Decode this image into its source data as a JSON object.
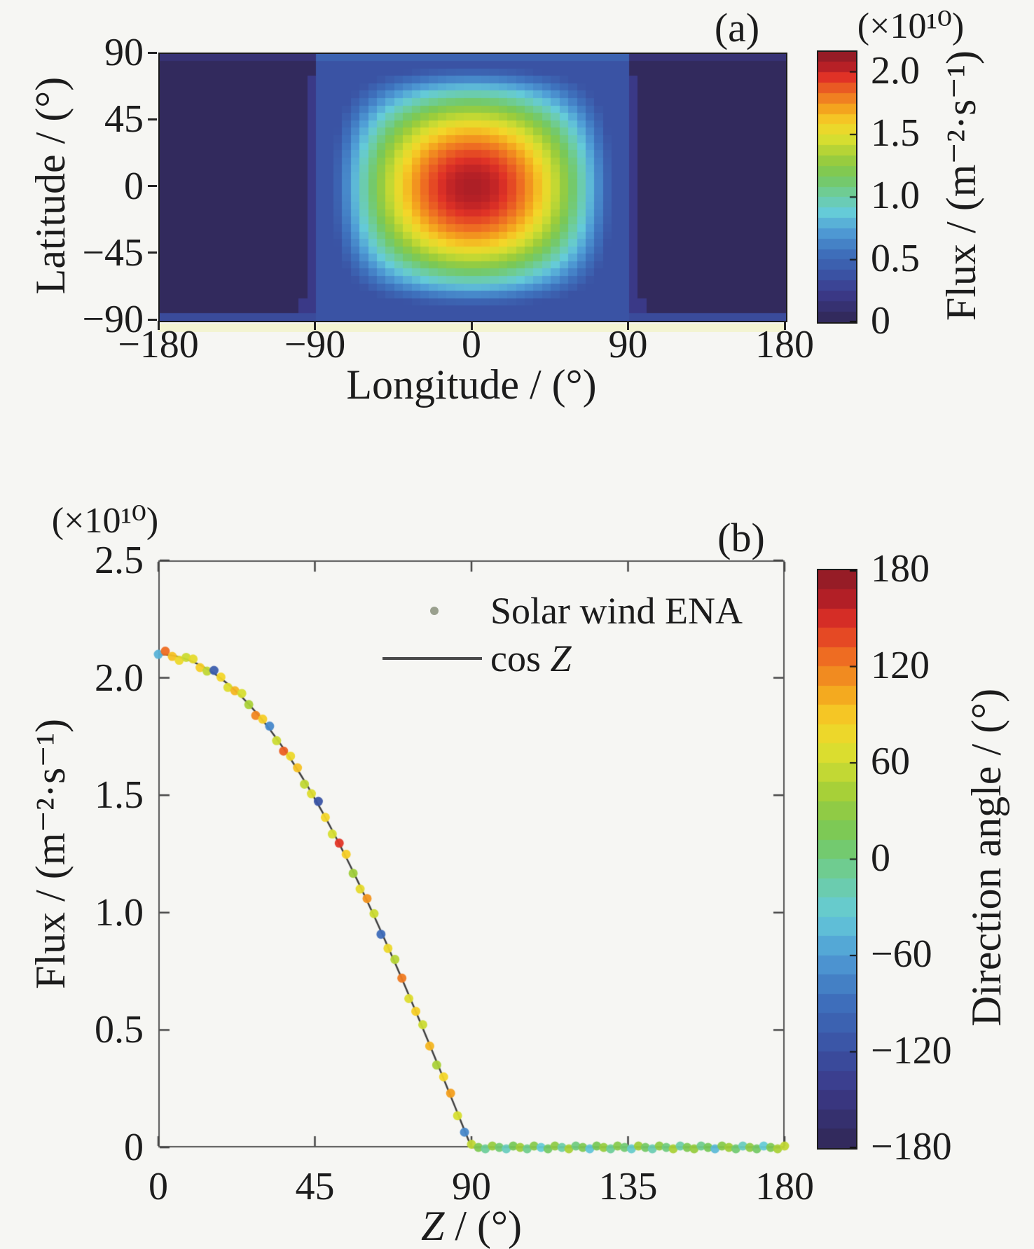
{
  "figure": {
    "background": "#f6f6f3",
    "text_color": "#1c1c1c",
    "axis_color": "#4a4a4a"
  },
  "jet_colormap_stops": [
    [
      0.0,
      "#322a5d"
    ],
    [
      0.09,
      "#3b3a8a"
    ],
    [
      0.16,
      "#3a52a3"
    ],
    [
      0.25,
      "#3e71bd"
    ],
    [
      0.33,
      "#509ed6"
    ],
    [
      0.4,
      "#65cbd8"
    ],
    [
      0.47,
      "#6ecd9c"
    ],
    [
      0.54,
      "#76c85a"
    ],
    [
      0.61,
      "#9ecd3a"
    ],
    [
      0.68,
      "#d6de30"
    ],
    [
      0.74,
      "#f5d528"
    ],
    [
      0.8,
      "#f4a41e"
    ],
    [
      0.86,
      "#ee6e22"
    ],
    [
      0.92,
      "#e03226"
    ],
    [
      0.96,
      "#b72026"
    ],
    [
      1.0,
      "#961c26"
    ]
  ],
  "panels": {
    "a": {
      "tag": "(a)",
      "xlabel": "Longitude / (°)",
      "ylabel": "Latitude / (°)",
      "scale_note": "(×10¹⁰)",
      "colorbar_label": "Flux / (m⁻²·s⁻¹)"
    },
    "b": {
      "tag": "(b)",
      "xlabel_var": "Z",
      "xlabel_rest": " / (°)",
      "ylabel": "Flux / (m⁻²·s⁻¹)",
      "scale_note": "(×10¹⁰)",
      "colorbar_label": "Direction angle / (°)",
      "legend": {
        "scatter_label": "Solar wind ENA",
        "line_label_pre": "cos ",
        "line_label_var": "Z"
      }
    }
  },
  "chart_data": [
    {
      "type": "heatmap",
      "panel": "a",
      "title": "(a)",
      "xlabel": "Longitude / (°)",
      "ylabel": "Latitude / (°)",
      "xlim": [
        -180,
        180
      ],
      "ylim": [
        -90,
        90
      ],
      "x_tick_values": [
        -180,
        -90,
        0,
        90,
        180
      ],
      "x_tick_labels": [
        "−180",
        "−90",
        "0",
        "90",
        "180"
      ],
      "y_tick_values": [
        90,
        45,
        0,
        -45,
        -90
      ],
      "y_tick_labels": [
        "90",
        "45",
        "0",
        "−45",
        "−90"
      ],
      "cell_deg": 5,
      "flux_model": "flux(lon,lat) = 2.1×10¹⁰ · max(0, cos lat · cos lon); peak 2.1×10¹⁰ m⁻²·s⁻¹ at (0°,0°); zero (dark) beyond ±90° longitude swath; low-flux blue floor inside the |lon| ≤ 90° swath",
      "model_params": {
        "amplitude_e10": 2.1,
        "column_floor_e10": 0.35,
        "stripe_floor_e10": 0.18,
        "bottom_row_floor_e10": 0.3,
        "top_row_floor_e10": 0.45,
        "column_half_width_deg": 90
      },
      "colorbar": {
        "range_e10": [
          0,
          2.16
        ],
        "tick_values": [
          2.0,
          1.5,
          1.0,
          0.5,
          0
        ],
        "tick_labels": [
          "2.0",
          "1.5",
          "1.0",
          "0.5",
          "0"
        ],
        "scale_note": "(×10¹⁰)",
        "label": "Flux / (m⁻²·s⁻¹)"
      },
      "grid": false
    },
    {
      "type": "scatter+line",
      "panel": "b",
      "title": "(b)",
      "xlabel": "Z / (°)",
      "ylabel": "Flux / (m⁻²·s⁻¹)",
      "xlim": [
        0,
        180
      ],
      "ylim": [
        0,
        2.5
      ],
      "x_tick_values": [
        0,
        45,
        90,
        135,
        180
      ],
      "x_tick_labels": [
        "0",
        "45",
        "90",
        "135",
        "180"
      ],
      "y_tick_values": [
        0,
        0.5,
        1.0,
        1.5,
        2.0,
        2.5
      ],
      "y_tick_labels": [
        "0",
        "0.5",
        "1.0",
        "1.5",
        "2.0",
        "2.5"
      ],
      "legend_position": "top-right-inside",
      "line": {
        "name": "cos Z",
        "amplitude_e10": 2.1,
        "model": "flux = 2.1×10¹⁰ · cos Z for Z ≤ 90°, 0 for Z > 90°",
        "color": "#3f3f3f"
      },
      "scatter": {
        "name": "Solar wind ENA",
        "color_by": "direction_angle_deg",
        "flux_model": "flux = 2.1×10¹⁰ · max(0, cos Z)",
        "points_z_dir": [
          [
            0,
            -50
          ],
          [
            2,
            130
          ],
          [
            4,
            95
          ],
          [
            6,
            80
          ],
          [
            8,
            60
          ],
          [
            10,
            75
          ],
          [
            12,
            90
          ],
          [
            14,
            55
          ],
          [
            16,
            -110
          ],
          [
            18,
            85
          ],
          [
            20,
            70
          ],
          [
            22,
            100
          ],
          [
            24,
            65
          ],
          [
            26,
            45
          ],
          [
            28,
            120
          ],
          [
            30,
            90
          ],
          [
            32,
            -75
          ],
          [
            34,
            60
          ],
          [
            36,
            135
          ],
          [
            38,
            80
          ],
          [
            40,
            95
          ],
          [
            42,
            55
          ],
          [
            44,
            70
          ],
          [
            46,
            -120
          ],
          [
            48,
            85
          ],
          [
            50,
            65
          ],
          [
            52,
            150
          ],
          [
            54,
            90
          ],
          [
            56,
            40
          ],
          [
            58,
            75
          ],
          [
            60,
            115
          ],
          [
            62,
            60
          ],
          [
            64,
            -95
          ],
          [
            66,
            80
          ],
          [
            68,
            50
          ],
          [
            70,
            125
          ],
          [
            72,
            70
          ],
          [
            74,
            90
          ],
          [
            76,
            60
          ],
          [
            78,
            100
          ],
          [
            80,
            45
          ],
          [
            82,
            85
          ],
          [
            84,
            110
          ],
          [
            86,
            65
          ],
          [
            88,
            -75
          ],
          [
            90,
            55
          ],
          [
            92,
            20
          ],
          [
            94,
            -10
          ],
          [
            96,
            35
          ],
          [
            98,
            5
          ],
          [
            100,
            -25
          ],
          [
            102,
            15
          ],
          [
            104,
            40
          ],
          [
            106,
            -5
          ],
          [
            108,
            25
          ],
          [
            110,
            -35
          ],
          [
            112,
            10
          ],
          [
            114,
            30
          ],
          [
            116,
            -15
          ],
          [
            118,
            45
          ],
          [
            120,
            0
          ],
          [
            122,
            20
          ],
          [
            124,
            -40
          ],
          [
            126,
            15
          ],
          [
            128,
            35
          ],
          [
            130,
            -10
          ],
          [
            132,
            25
          ],
          [
            134,
            5
          ],
          [
            136,
            -30
          ],
          [
            138,
            40
          ],
          [
            140,
            10
          ],
          [
            142,
            -20
          ],
          [
            144,
            30
          ],
          [
            146,
            0
          ],
          [
            148,
            45
          ],
          [
            150,
            -15
          ],
          [
            152,
            20
          ],
          [
            154,
            35
          ],
          [
            156,
            -5
          ],
          [
            158,
            15
          ],
          [
            160,
            -45
          ],
          [
            162,
            25
          ],
          [
            164,
            40
          ],
          [
            166,
            5
          ],
          [
            168,
            -25
          ],
          [
            170,
            30
          ],
          [
            172,
            10
          ],
          [
            174,
            -35
          ],
          [
            176,
            20
          ],
          [
            178,
            45
          ],
          [
            180,
            55
          ]
        ]
      },
      "colorbar": {
        "range_deg": [
          -180,
          180
        ],
        "tick_values": [
          180,
          120,
          60,
          0,
          -60,
          -120,
          -180
        ],
        "tick_labels": [
          "180",
          "120",
          "60",
          "0",
          "−60",
          "−120",
          "−180"
        ],
        "label": "Direction angle / (°)"
      },
      "grid": false
    }
  ]
}
